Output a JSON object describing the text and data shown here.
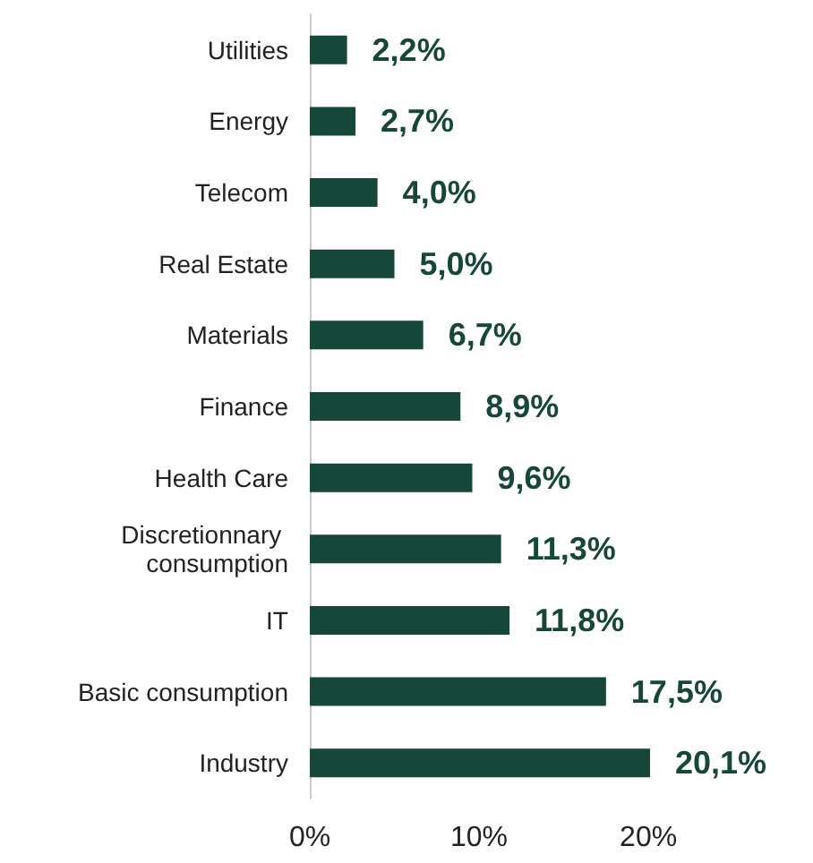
{
  "chart_data": {
    "type": "bar",
    "orientation": "horizontal",
    "categories": [
      "Utilities",
      "Energy",
      "Telecom",
      "Real Estate",
      "Materials",
      "Finance",
      "Health Care",
      "Discretionnary consumption",
      "IT",
      "Basic consumption",
      "Industry"
    ],
    "values": [
      2.2,
      2.7,
      4.0,
      5.0,
      6.7,
      8.9,
      9.6,
      11.3,
      11.8,
      17.5,
      20.1
    ],
    "value_labels": [
      "2,2%",
      "2,7%",
      "4,0%",
      "5,0%",
      "6,7%",
      "8,9%",
      "9,6%",
      "11,3%",
      "11,8%",
      "17,5%",
      "20,1%"
    ],
    "color": "#17473a",
    "xticks": [
      {
        "value": 0,
        "label": "0%"
      },
      {
        "value": 10,
        "label": "10%"
      },
      {
        "value": 20,
        "label": "20%"
      }
    ],
    "xlim": [
      0,
      20.1
    ],
    "grid": false
  }
}
